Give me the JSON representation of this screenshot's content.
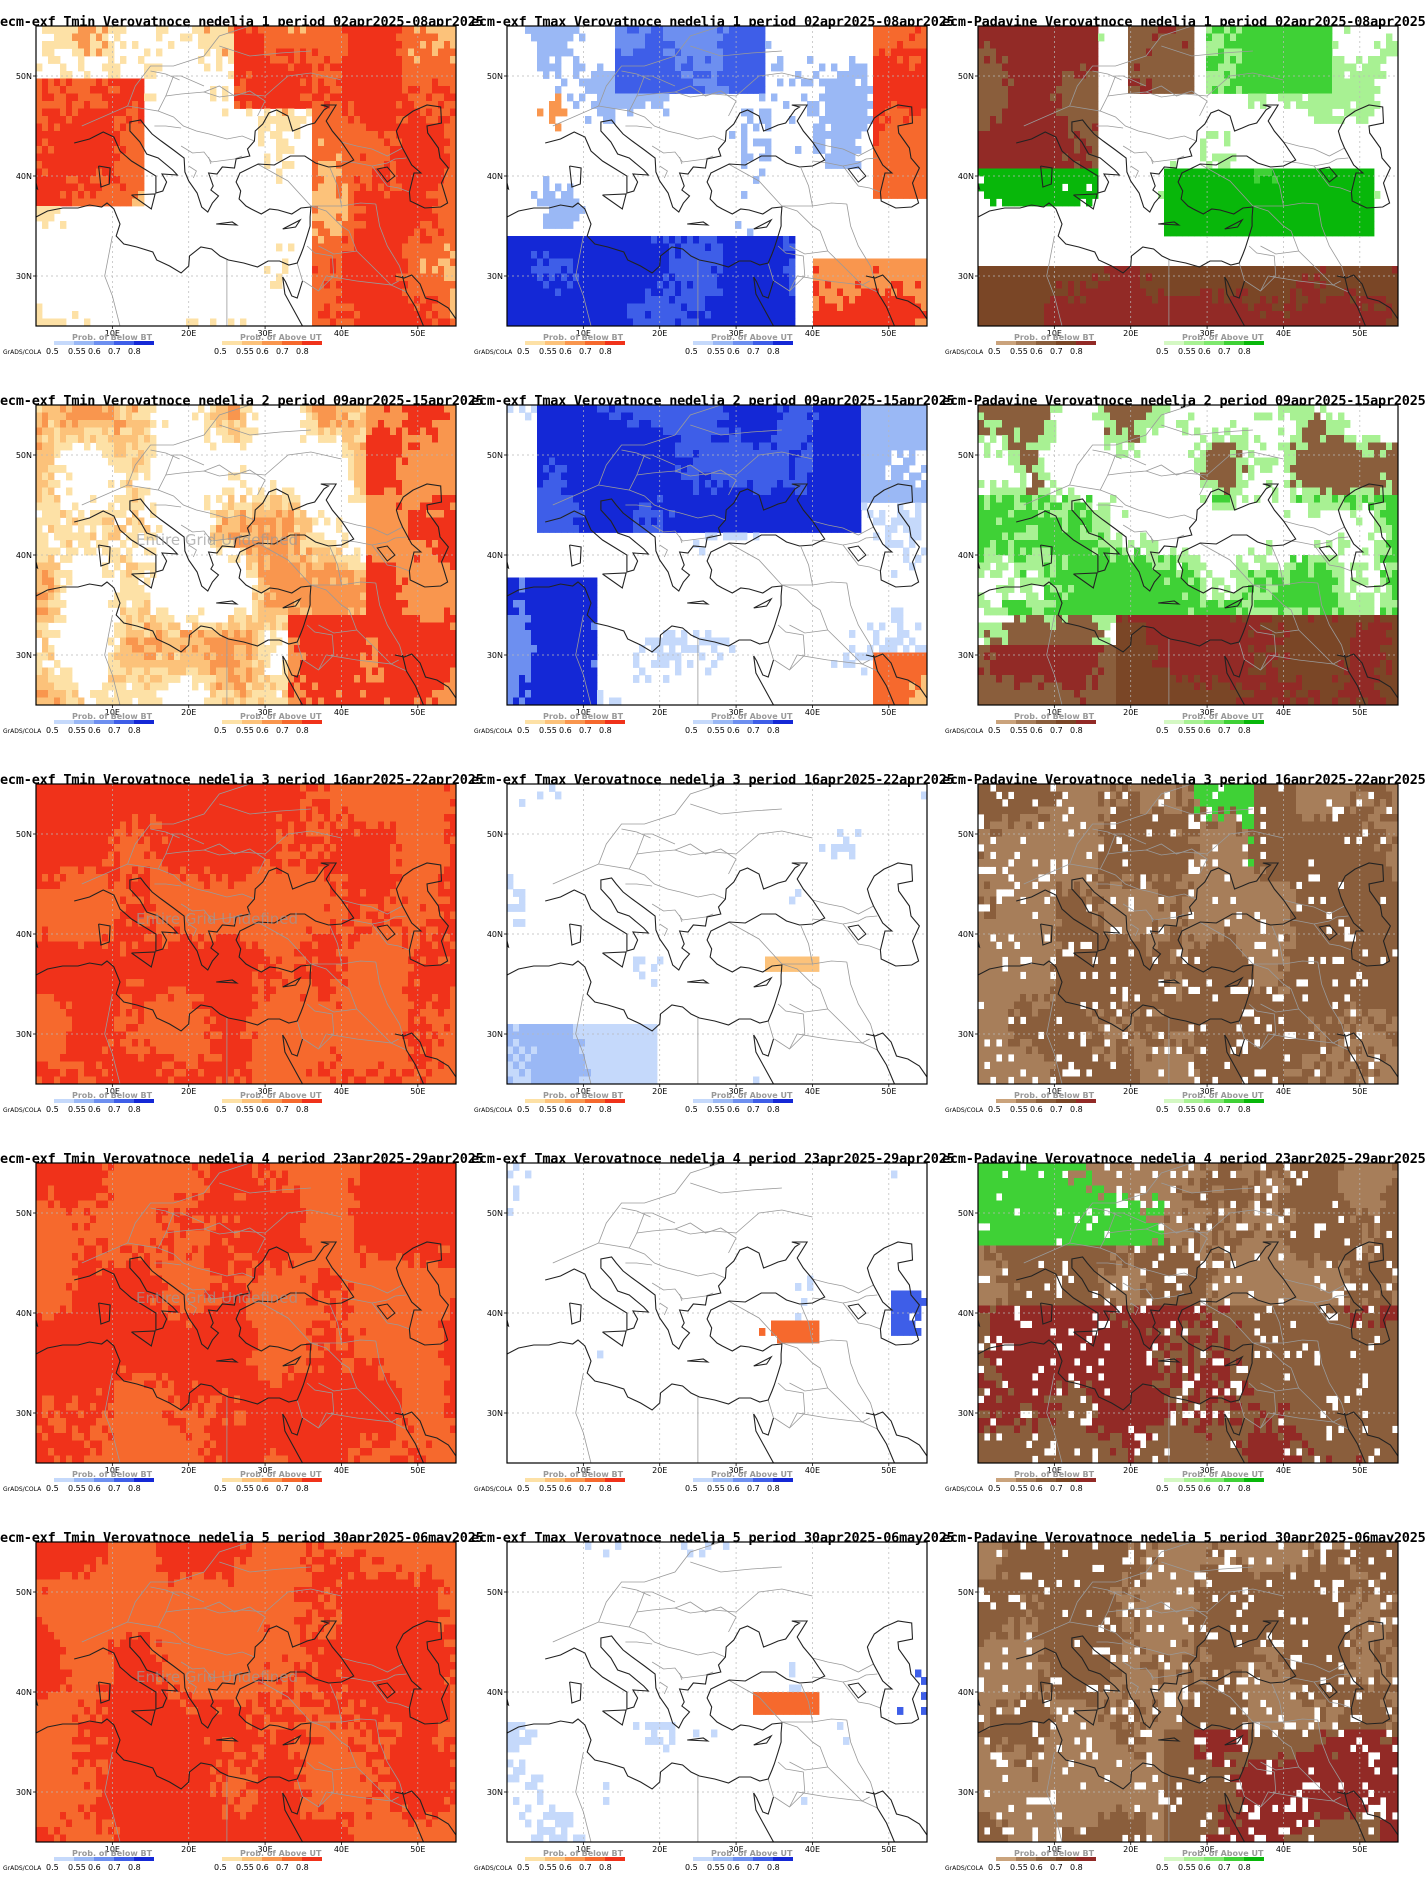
{
  "axes": {
    "lon_ticks": [
      "10E",
      "20E",
      "30E",
      "40E",
      "50E"
    ],
    "lat_ticks": [
      "30N",
      "40N",
      "50N"
    ]
  },
  "legend": {
    "credit": "GrADS/COLA",
    "levels": [
      "0.5",
      "0.55",
      "0.6",
      "0.7",
      "0.8"
    ],
    "below_bt": "Prob. of Below BT",
    "above_ut": "Prob. of Above UT"
  },
  "undefined_note": "Entire Grid Undefined",
  "colors": {
    "blue": [
      "#c5d9fb",
      "#9ab8f5",
      "#6d8ff0",
      "#3e5ee8",
      "#1428d6"
    ],
    "orange": [
      "#fde1a6",
      "#fcc27a",
      "#f9964e",
      "#f6692d",
      "#f0321a"
    ],
    "brown": [
      "#caa37c",
      "#a77e5a",
      "#8a5e3c",
      "#7a4626",
      "#922a26"
    ],
    "green": [
      "#d4f8c3",
      "#a8f193",
      "#7ee86e",
      "#3fd136",
      "#08b70a"
    ]
  },
  "panels": [
    {
      "id": "tmin-w1",
      "title": "ecm-exf Tmin Verovatnoce nedelja 1 period 02apr2025-08apr2025",
      "kind": "tmin",
      "undefined": false
    },
    {
      "id": "tmax-w1",
      "title": "ecm-exf Tmax Verovatnoce nedelja 1 period 02apr2025-08apr2025",
      "kind": "tmax",
      "undefined": false
    },
    {
      "id": "pad-w1",
      "title": "ecm-Padavine Verovatnoce nedelja 1 period 02apr2025-08apr2025",
      "kind": "pad",
      "undefined": false
    },
    {
      "id": "tmin-w2",
      "title": "ecm-exf Tmin Verovatnoce nedelja 2 period 09apr2025-15apr2025",
      "kind": "tmin",
      "undefined": true
    },
    {
      "id": "tmax-w2",
      "title": "ecm-exf Tmax Verovatnoce nedelja 2 period 09apr2025-15apr2025",
      "kind": "tmax",
      "undefined": false
    },
    {
      "id": "pad-w2",
      "title": "ecm-Padavine Verovatnoce nedelja 2 period 09apr2025-15apr2025",
      "kind": "pad",
      "undefined": false
    },
    {
      "id": "tmin-w3",
      "title": "ecm-exf Tmin Verovatnoce nedelja 3 period 16apr2025-22apr2025",
      "kind": "tmin",
      "undefined": true
    },
    {
      "id": "tmax-w3",
      "title": "ecm-exf Tmax Verovatnoce nedelja 3 period 16apr2025-22apr2025",
      "kind": "tmax",
      "undefined": false
    },
    {
      "id": "pad-w3",
      "title": "ecm-Padavine Verovatnoce nedelja 3 period 16apr2025-22apr2025",
      "kind": "pad",
      "undefined": false
    },
    {
      "id": "tmin-w4",
      "title": "ecm-exf Tmin Verovatnoce nedelja 4 period 23apr2025-29apr2025",
      "kind": "tmin",
      "undefined": true
    },
    {
      "id": "tmax-w4",
      "title": "ecm-exf Tmax Verovatnoce nedelja 4 period 23apr2025-29apr2025",
      "kind": "tmax",
      "undefined": false
    },
    {
      "id": "pad-w4",
      "title": "ecm-Padavine Verovatnoce nedelja 4 period 23apr2025-29apr2025",
      "kind": "pad",
      "undefined": false
    },
    {
      "id": "tmin-w5",
      "title": "ecm-exf Tmin Verovatnoce nedelja 5 period 30apr2025-06may2025",
      "kind": "tmin",
      "undefined": true
    },
    {
      "id": "tmax-w5",
      "title": "ecm-exf Tmax Verovatnoce nedelja 5 period 30apr2025-06may2025",
      "kind": "tmax",
      "undefined": false
    },
    {
      "id": "pad-w5",
      "title": "ecm-Padavine Verovatnoce nedelja 5 period 30apr2025-06may2025",
      "kind": "pad",
      "undefined": false
    }
  ]
}
